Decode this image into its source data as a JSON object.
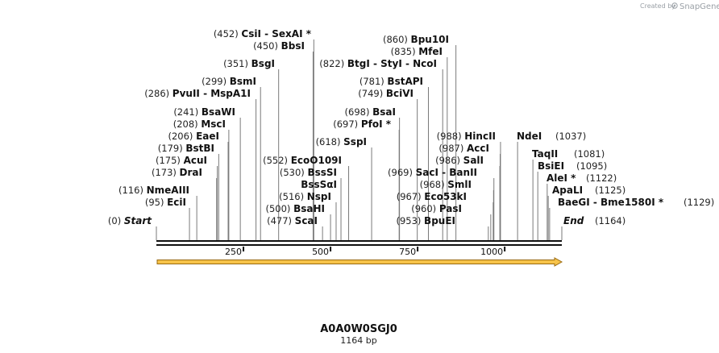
{
  "credit": {
    "created_by": "Created by",
    "brand": "SnapGene"
  },
  "sequence": {
    "name": "A0A0W0SGJ0",
    "length_label": "1164 bp",
    "length": 1164
  },
  "ruler": {
    "ticks": [
      250,
      500,
      750,
      1000
    ]
  },
  "start_label": {
    "pos": "(0)",
    "name": "Start",
    "bp": 0
  },
  "end_label": {
    "name": "End",
    "pos": "(1164)",
    "bp": 1164
  },
  "sites_left": [
    {
      "pos": "(452)",
      "name": "CsiI  - SexAI *",
      "bp": 452
    },
    {
      "pos": "(450)",
      "name": "BbsI",
      "bp": 450
    },
    {
      "pos": "(351)",
      "name": "BsgI",
      "bp": 351
    },
    {
      "pos": "(299)",
      "name": "BsmI",
      "bp": 299
    },
    {
      "pos": "(286)",
      "name": "PvuII  - MspA1I",
      "bp": 286
    },
    {
      "pos": "(241)",
      "name": "BsaWI",
      "bp": 241
    },
    {
      "pos": "(208)",
      "name": "MscI",
      "bp": 208
    },
    {
      "pos": "(206)",
      "name": "EaeI",
      "bp": 206
    },
    {
      "pos": "(179)",
      "name": "BstBI",
      "bp": 179
    },
    {
      "pos": "(175)",
      "name": "AcuI",
      "bp": 175
    },
    {
      "pos": "(173)",
      "name": "DraI",
      "bp": 173
    },
    {
      "pos": "(116)",
      "name": "NmeAIII",
      "bp": 116
    },
    {
      "pos": "(95)",
      "name": "EciI",
      "bp": 95
    }
  ],
  "sites_mid": [
    {
      "pos": "(860)",
      "name": "Bpu10I",
      "bp": 860
    },
    {
      "pos": "(835)",
      "name": "MfeI",
      "bp": 835
    },
    {
      "pos": "(822)",
      "name": "BtgI  - StyI  - NcoI",
      "bp": 822
    },
    {
      "pos": "(781)",
      "name": "BstAPI",
      "bp": 781
    },
    {
      "pos": "(749)",
      "name": "BciVI",
      "bp": 749
    },
    {
      "pos": "(698)",
      "name": "BsaI",
      "bp": 698
    },
    {
      "pos": "(697)",
      "name": "PfoI *",
      "bp": 697
    },
    {
      "pos": "(618)",
      "name": "SspI",
      "bp": 618
    },
    {
      "pos": "(552)",
      "name": "EcoO109I",
      "bp": 552
    },
    {
      "pos": "(530)",
      "name": "BssSI",
      "bp": 530
    },
    {
      "pos": "",
      "name": "BssSαI",
      "bp": 530
    },
    {
      "pos": "(516)",
      "name": "NspI",
      "bp": 516
    },
    {
      "pos": "(500)",
      "name": "BsaHI",
      "bp": 500
    },
    {
      "pos": "(477)",
      "name": "ScaI",
      "bp": 477
    }
  ],
  "sites_right": [
    {
      "pos": "(988)",
      "name": "HincII",
      "bp": 988
    },
    {
      "pos": "(987)",
      "name": "AccI",
      "bp": 987
    },
    {
      "pos": "(986)",
      "name": "SalI",
      "bp": 986
    },
    {
      "pos": "(969)",
      "name": "SacI  - BanII",
      "bp": 969
    },
    {
      "pos": "(968)",
      "name": "SmlI",
      "bp": 968
    },
    {
      "pos": "(967)",
      "name": "Eco53kI",
      "bp": 967
    },
    {
      "pos": "(960)",
      "name": "PasI",
      "bp": 960
    },
    {
      "pos": "(953)",
      "name": "BpuEI",
      "bp": 953
    }
  ],
  "sites_far": [
    {
      "name": "NdeI",
      "pos": "(1037)",
      "bp": 1037
    },
    {
      "name": "TaqII",
      "pos": "(1081)",
      "bp": 1081
    },
    {
      "name": "BsiEI",
      "pos": "(1095)",
      "bp": 1095
    },
    {
      "name": "AleI *",
      "pos": "(1122)",
      "bp": 1122
    },
    {
      "name": "ApaLI",
      "pos": "(1125)",
      "bp": 1125
    },
    {
      "name": "BaeGI  - Bme1580I *",
      "pos": "(1129)",
      "bp": 1129
    }
  ],
  "colors": {
    "arrow_fill": "#f7c34a",
    "arrow_stroke": "#9a6b12",
    "backbone": "#111111",
    "cut_line": "#7a7a7a"
  }
}
